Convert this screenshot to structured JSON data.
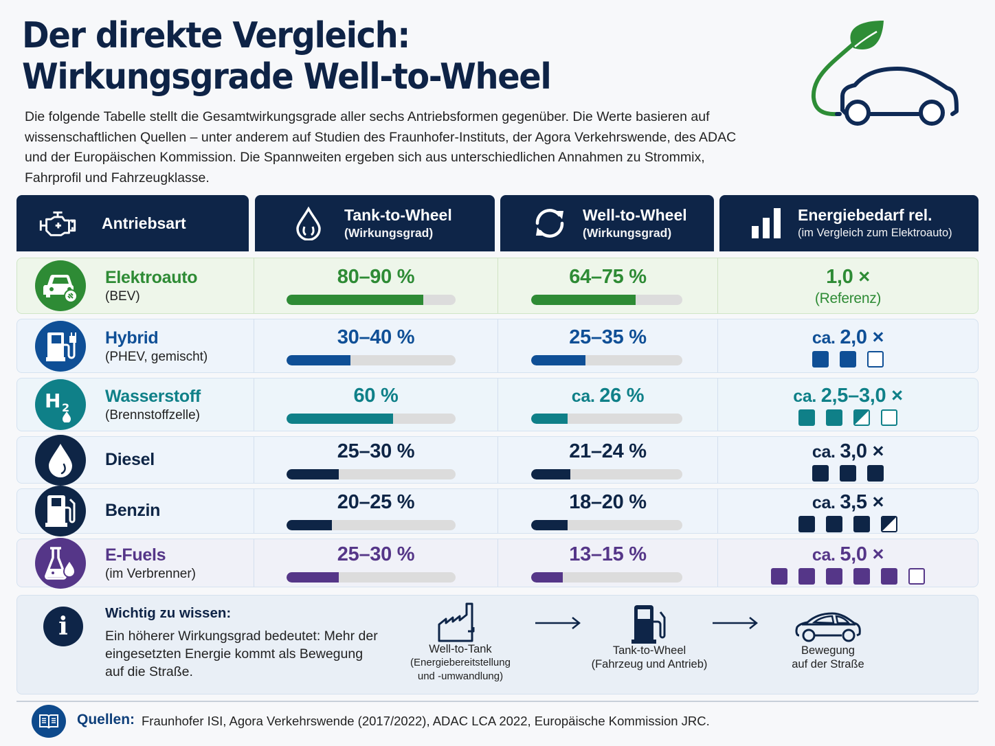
{
  "title": {
    "line1": "Der direkte Vergleich:",
    "line2": "Wirkungsgrade Well-to-Wheel"
  },
  "intro": "Die folgende Tabelle stellt die Gesamtwirkungsgrade aller sechs Antriebsformen gegenüber. Die Werte basieren auf wissenschaftlichen Quellen – unter anderem auf Studien des Fraunhofer-Instituts, der Agora Verkehrswende, des ADAC und der Europäischen Kommission. Die Spannweiten ergeben sich aus unterschiedlichen Annahmen zu Strommix, Fahrprofil und Fahrzeugklasse.",
  "logo_icon": "eco-car-leaf-icon",
  "colors": {
    "navy": "#0e2548",
    "green": "#2e8b35",
    "blue": "#0f4f96",
    "teal": "#0f8088",
    "dark": "#0e2546",
    "purple": "#553688",
    "track": "#dcdcdc"
  },
  "headers": [
    {
      "icon": "engine-icon",
      "title": "Antriebsart",
      "sub": ""
    },
    {
      "icon": "drop-icon",
      "title": "Tank-to-Wheel",
      "sub": "(Wirkungsgrad)"
    },
    {
      "icon": "cycle-arrows-icon",
      "title": "Well-to-Wheel",
      "sub": "(Wirkungsgrad)"
    },
    {
      "icon": "bar-chart-icon",
      "title": "Energiebedarf rel.",
      "sub": "(im Vergleich zum Elektroauto)"
    }
  ],
  "rows": [
    {
      "name": "Elektroauto",
      "sub": "(BEV)",
      "icon": "electric-car-plug-icon",
      "color": "#2e8b35",
      "ttw": {
        "label": "80–90 %",
        "prefix": "",
        "fill_pct": 81
      },
      "wtw": {
        "label": "64–75 %",
        "prefix": "",
        "fill_pct": 69
      },
      "energy": {
        "label": "1,0 ×",
        "prefix": "",
        "note": "(Referenz)",
        "squares": []
      }
    },
    {
      "name": "Hybrid",
      "sub": "(PHEV, gemischt)",
      "icon": "fuel-pump-plug-icon",
      "color": "#0f4f96",
      "ttw": {
        "label": "30–40 %",
        "prefix": "",
        "fill_pct": 38
      },
      "wtw": {
        "label": "25–35 %",
        "prefix": "",
        "fill_pct": 36
      },
      "energy": {
        "label": "2,0 ×",
        "prefix": "ca. ",
        "note": "",
        "squares": [
          "full",
          "full",
          "empty"
        ]
      }
    },
    {
      "name": "Wasserstoff",
      "sub": "(Brennstoffzelle)",
      "icon": "h2-drop-icon",
      "color": "#0f8088",
      "ttw": {
        "label": "60 %",
        "prefix": "",
        "fill_pct": 63
      },
      "wtw": {
        "label": "26 %",
        "prefix": "ca. ",
        "fill_pct": 24
      },
      "energy": {
        "label": "2,5–3,0 ×",
        "prefix": "ca. ",
        "note": "",
        "squares": [
          "full",
          "full",
          "half",
          "empty"
        ]
      }
    },
    {
      "name": "Diesel",
      "sub": "",
      "icon": "oil-drop-icon",
      "color": "#0e2546",
      "ttw": {
        "label": "25–30 %",
        "prefix": "",
        "fill_pct": 31
      },
      "wtw": {
        "label": "21–24 %",
        "prefix": "",
        "fill_pct": 26
      },
      "energy": {
        "label": "3,0 ×",
        "prefix": "ca. ",
        "note": "",
        "squares": [
          "full",
          "full",
          "full"
        ]
      }
    },
    {
      "name": "Benzin",
      "sub": "",
      "icon": "fuel-pump-icon",
      "color": "#0e2546",
      "ttw": {
        "label": "20–25 %",
        "prefix": "",
        "fill_pct": 27
      },
      "wtw": {
        "label": "18–20 %",
        "prefix": "",
        "fill_pct": 24
      },
      "energy": {
        "label": "3,5 ×",
        "prefix": "ca. ",
        "note": "",
        "squares": [
          "full",
          "full",
          "full",
          "half"
        ]
      }
    },
    {
      "name": "E-Fuels",
      "sub": "(im Verbrenner)",
      "icon": "flask-drop-icon",
      "color": "#553688",
      "ttw": {
        "label": "25–30 %",
        "prefix": "",
        "fill_pct": 31
      },
      "wtw": {
        "label": "13–15 %",
        "prefix": "",
        "fill_pct": 21
      },
      "energy": {
        "label": "5,0 ×",
        "prefix": "ca. ",
        "note": "",
        "squares": [
          "full",
          "full",
          "full",
          "full",
          "full",
          "empty"
        ]
      }
    }
  ],
  "info": {
    "title": "Wichtig zu wissen:",
    "text": "Ein höherer Wirkungsgrad bedeutet: Mehr der eingesetzten Energie kommt als Bewegung auf die Straße.",
    "flow": [
      {
        "icon": "factory-icon",
        "line1": "Well-to-Tank",
        "line2": "(Energiebereitstellung",
        "line3": "und -umwandlung)"
      },
      {
        "icon": "fuel-pump-icon",
        "line1": "Tank-to-Wheel",
        "line2": "(Fahrzeug und Antrieb)",
        "line3": ""
      },
      {
        "icon": "car-outline-icon",
        "line1": "Bewegung",
        "line2": "auf der Straße",
        "line3": ""
      }
    ]
  },
  "sources": {
    "label": "Quellen:",
    "text": "Fraunhofer ISI, Agora Verkehrswende (2017/2022), ADAC LCA 2022, Europäische Kommission JRC."
  }
}
